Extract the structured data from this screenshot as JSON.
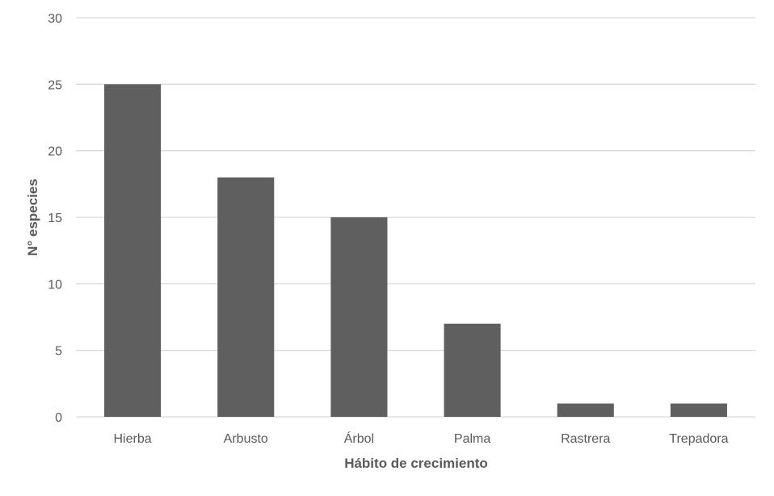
{
  "chart_data": {
    "type": "bar",
    "title": "",
    "xlabel": "Hábito de crecimiento",
    "ylabel": "N° especies",
    "categories": [
      "Hierba",
      "Arbusto",
      "Árbol",
      "Palma",
      "Rastrera",
      "Trepadora"
    ],
    "values": [
      25,
      18,
      15,
      7,
      1,
      1
    ],
    "ylim": [
      0,
      30
    ],
    "yticks": [
      "0",
      "5",
      "10",
      "15",
      "20",
      "25",
      "30"
    ],
    "grid": true,
    "legend": "none",
    "colors": {
      "bar": "#5f5f5f",
      "grid": "#d9d9d9",
      "axis_text": "#595959"
    }
  }
}
